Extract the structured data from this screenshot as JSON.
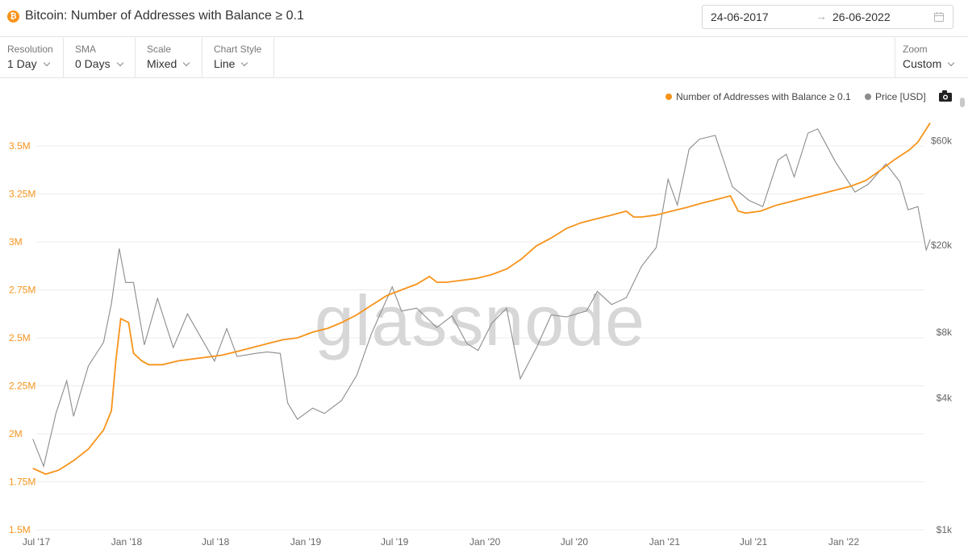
{
  "header": {
    "coin_glyph": "₿",
    "title": "Bitcoin: Number of Addresses with Balance ≥ 0.1",
    "date_start": "24-06-2017",
    "date_arrow": "→",
    "date_end": "26-06-2022"
  },
  "toolbar": {
    "resolution": {
      "label": "Resolution",
      "value": "1 Day"
    },
    "sma": {
      "label": "SMA",
      "value": "0 Days"
    },
    "scale": {
      "label": "Scale",
      "value": "Mixed"
    },
    "chart_style": {
      "label": "Chart Style",
      "value": "Line"
    },
    "zoom": {
      "label": "Zoom",
      "value": "Custom"
    }
  },
  "watermark": "glassnode",
  "colors": {
    "addresses": "#f7931a",
    "price": "#8c8c8c",
    "grid": "#ececec"
  },
  "chart_data": {
    "type": "line",
    "legend_position": "top-right",
    "grid": true,
    "x_ticks": [
      "Jul '17",
      "Jan '18",
      "Jul '18",
      "Jan '19",
      "Jul '19",
      "Jan '20",
      "Jul '20",
      "Jan '21",
      "Jul '21",
      "Jan '22"
    ],
    "y_left": {
      "scale": "linear",
      "range": [
        1.5,
        3.5
      ],
      "unit": "M",
      "ticks": [
        "1.5M",
        "1.75M",
        "2M",
        "2.25M",
        "2.5M",
        "2.75M",
        "3M",
        "3.25M",
        "3.5M"
      ]
    },
    "y_right": {
      "scale": "log",
      "ticks": [
        "$1k",
        "$4k",
        "$8k",
        "$20k",
        "$60k"
      ]
    },
    "series": [
      {
        "name": "Number of Addresses with Balance ≥ 0.1",
        "axis": "left",
        "points": [
          [
            "2017-06-24",
            1.82
          ],
          [
            "2017-07-20",
            1.79
          ],
          [
            "2017-08-15",
            1.81
          ],
          [
            "2017-09-15",
            1.86
          ],
          [
            "2017-10-15",
            1.92
          ],
          [
            "2017-11-15",
            2.02
          ],
          [
            "2017-12-01",
            2.12
          ],
          [
            "2017-12-10",
            2.38
          ],
          [
            "2017-12-20",
            2.6
          ],
          [
            "2018-01-05",
            2.58
          ],
          [
            "2018-01-15",
            2.42
          ],
          [
            "2018-02-01",
            2.38
          ],
          [
            "2018-02-15",
            2.36
          ],
          [
            "2018-03-15",
            2.36
          ],
          [
            "2018-04-15",
            2.38
          ],
          [
            "2018-05-15",
            2.39
          ],
          [
            "2018-06-15",
            2.4
          ],
          [
            "2018-07-15",
            2.41
          ],
          [
            "2018-08-15",
            2.43
          ],
          [
            "2018-09-15",
            2.45
          ],
          [
            "2018-10-15",
            2.47
          ],
          [
            "2018-11-15",
            2.49
          ],
          [
            "2018-12-15",
            2.5
          ],
          [
            "2019-01-15",
            2.53
          ],
          [
            "2019-02-15",
            2.55
          ],
          [
            "2019-03-15",
            2.58
          ],
          [
            "2019-04-15",
            2.62
          ],
          [
            "2019-05-15",
            2.67
          ],
          [
            "2019-06-15",
            2.72
          ],
          [
            "2019-07-15",
            2.75
          ],
          [
            "2019-08-15",
            2.78
          ],
          [
            "2019-09-10",
            2.82
          ],
          [
            "2019-09-25",
            2.79
          ],
          [
            "2019-10-15",
            2.79
          ],
          [
            "2019-11-15",
            2.8
          ],
          [
            "2019-12-15",
            2.81
          ],
          [
            "2020-01-15",
            2.83
          ],
          [
            "2020-02-15",
            2.86
          ],
          [
            "2020-03-15",
            2.91
          ],
          [
            "2020-04-15",
            2.98
          ],
          [
            "2020-05-15",
            3.02
          ],
          [
            "2020-06-15",
            3.07
          ],
          [
            "2020-07-15",
            3.1
          ],
          [
            "2020-08-15",
            3.12
          ],
          [
            "2020-09-15",
            3.14
          ],
          [
            "2020-10-15",
            3.16
          ],
          [
            "2020-10-30",
            3.13
          ],
          [
            "2020-11-15",
            3.13
          ],
          [
            "2020-12-15",
            3.14
          ],
          [
            "2021-01-15",
            3.16
          ],
          [
            "2021-02-15",
            3.18
          ],
          [
            "2021-03-15",
            3.2
          ],
          [
            "2021-04-15",
            3.22
          ],
          [
            "2021-05-15",
            3.24
          ],
          [
            "2021-05-31",
            3.16
          ],
          [
            "2021-06-15",
            3.15
          ],
          [
            "2021-07-15",
            3.16
          ],
          [
            "2021-08-15",
            3.19
          ],
          [
            "2021-09-15",
            3.21
          ],
          [
            "2021-10-15",
            3.23
          ],
          [
            "2021-11-15",
            3.25
          ],
          [
            "2021-12-15",
            3.27
          ],
          [
            "2022-01-15",
            3.29
          ],
          [
            "2022-02-15",
            3.32
          ],
          [
            "2022-03-15",
            3.37
          ],
          [
            "2022-04-15",
            3.43
          ],
          [
            "2022-05-15",
            3.48
          ],
          [
            "2022-06-01",
            3.52
          ],
          [
            "2022-06-26",
            3.62
          ]
        ]
      },
      {
        "name": "Price [USD]",
        "axis": "right",
        "points": [
          [
            "2017-06-24",
            2600
          ],
          [
            "2017-07-16",
            1950
          ],
          [
            "2017-08-10",
            3400
          ],
          [
            "2017-09-01",
            4800
          ],
          [
            "2017-09-15",
            3300
          ],
          [
            "2017-10-15",
            5600
          ],
          [
            "2017-11-15",
            7200
          ],
          [
            "2017-12-01",
            10800
          ],
          [
            "2017-12-17",
            19300
          ],
          [
            "2017-12-30",
            13500
          ],
          [
            "2018-01-15",
            13500
          ],
          [
            "2018-02-06",
            7000
          ],
          [
            "2018-03-05",
            11400
          ],
          [
            "2018-04-06",
            6800
          ],
          [
            "2018-05-05",
            9700
          ],
          [
            "2018-06-29",
            5900
          ],
          [
            "2018-07-24",
            8300
          ],
          [
            "2018-08-14",
            6200
          ],
          [
            "2018-09-20",
            6400
          ],
          [
            "2018-10-15",
            6500
          ],
          [
            "2018-11-10",
            6400
          ],
          [
            "2018-11-25",
            3800
          ],
          [
            "2018-12-15",
            3200
          ],
          [
            "2019-01-15",
            3600
          ],
          [
            "2019-02-08",
            3400
          ],
          [
            "2019-03-15",
            3900
          ],
          [
            "2019-04-15",
            5100
          ],
          [
            "2019-05-15",
            7900
          ],
          [
            "2019-06-26",
            12900
          ],
          [
            "2019-07-15",
            10000
          ],
          [
            "2019-08-15",
            10300
          ],
          [
            "2019-09-25",
            8400
          ],
          [
            "2019-10-26",
            9500
          ],
          [
            "2019-11-25",
            7100
          ],
          [
            "2019-12-18",
            6600
          ],
          [
            "2020-01-15",
            8800
          ],
          [
            "2020-02-14",
            10300
          ],
          [
            "2020-03-13",
            4900
          ],
          [
            "2020-04-15",
            6800
          ],
          [
            "2020-05-15",
            9600
          ],
          [
            "2020-06-15",
            9400
          ],
          [
            "2020-07-26",
            10000
          ],
          [
            "2020-08-17",
            12300
          ],
          [
            "2020-09-15",
            10700
          ],
          [
            "2020-10-15",
            11500
          ],
          [
            "2020-11-15",
            16000
          ],
          [
            "2020-12-15",
            19500
          ],
          [
            "2021-01-08",
            40000
          ],
          [
            "2021-01-27",
            30500
          ],
          [
            "2021-02-20",
            55000
          ],
          [
            "2021-03-13",
            61000
          ],
          [
            "2021-04-14",
            63500
          ],
          [
            "2021-05-19",
            37000
          ],
          [
            "2021-06-22",
            32000
          ],
          [
            "2021-07-20",
            30000
          ],
          [
            "2021-08-20",
            49000
          ],
          [
            "2021-09-06",
            52000
          ],
          [
            "2021-09-22",
            41000
          ],
          [
            "2021-10-20",
            65000
          ],
          [
            "2021-11-09",
            68000
          ],
          [
            "2021-12-15",
            48000
          ],
          [
            "2022-01-24",
            35000
          ],
          [
            "2022-02-20",
            38000
          ],
          [
            "2022-03-28",
            47000
          ],
          [
            "2022-04-25",
            39000
          ],
          [
            "2022-05-12",
            29000
          ],
          [
            "2022-06-01",
            30000
          ],
          [
            "2022-06-18",
            19000
          ],
          [
            "2022-06-26",
            21200
          ]
        ]
      }
    ]
  }
}
